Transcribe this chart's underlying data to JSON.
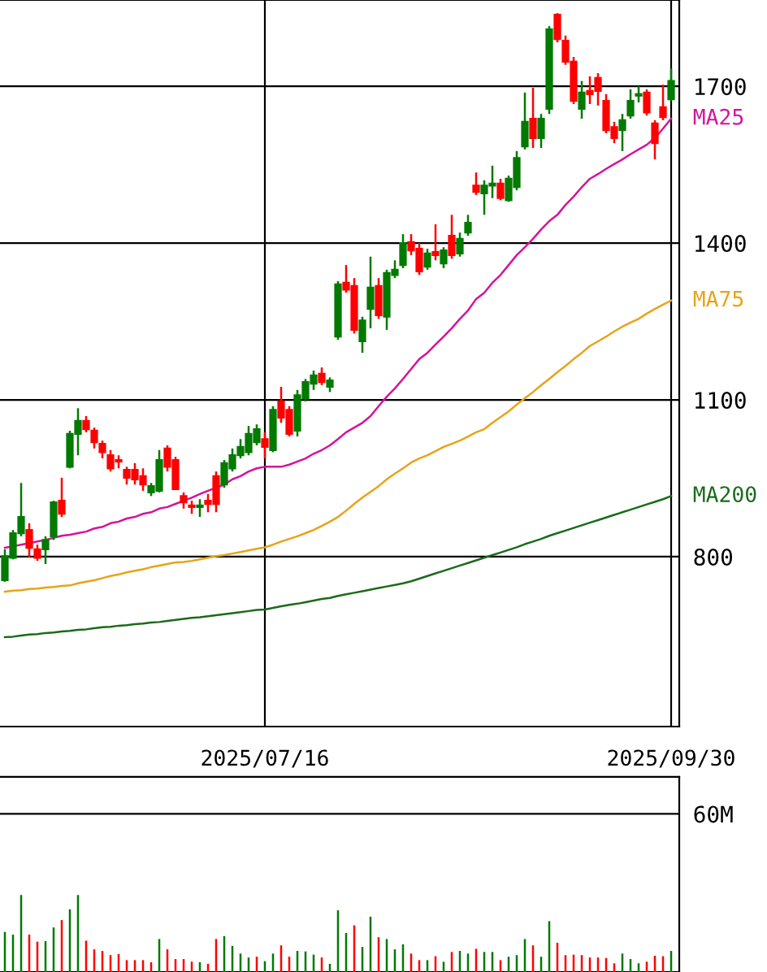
{
  "chart_data": [
    {
      "type": "candlestick",
      "grid": true,
      "ylim": [
        475,
        1865
      ],
      "yticks": [
        800,
        1100,
        1400,
        1700
      ],
      "categories": [
        null,
        null,
        null,
        null,
        null,
        null,
        null,
        null,
        null,
        null,
        null,
        null,
        null,
        null,
        null,
        null,
        null,
        null,
        null,
        null,
        null,
        null,
        null,
        null,
        null,
        null,
        null,
        null,
        null,
        null,
        null,
        null,
        "2025/07/16",
        null,
        null,
        null,
        null,
        null,
        null,
        null,
        null,
        null,
        null,
        null,
        null,
        null,
        null,
        null,
        null,
        null,
        null,
        null,
        null,
        null,
        null,
        null,
        null,
        null,
        null,
        null,
        null,
        null,
        null,
        null,
        null,
        null,
        null,
        null,
        null,
        null,
        null,
        null,
        null,
        null,
        null,
        null,
        null,
        null,
        null,
        null,
        null,
        null,
        "2025/09/30"
      ],
      "ohlc": [
        [
          755,
          814,
          752,
          801
        ],
        [
          798,
          851,
          795,
          845
        ],
        [
          845,
          941,
          839,
          876
        ],
        [
          851,
          864,
          798,
          817
        ],
        [
          814,
          823,
          792,
          798
        ],
        [
          814,
          839,
          786,
          832
        ],
        [
          839,
          907,
          832,
          904
        ],
        [
          907,
          951,
          876,
          882
        ],
        [
          972,
          1041,
          969,
          1035
        ],
        [
          1035,
          1084,
          994,
          1060
        ],
        [
          1060,
          1069,
          1038,
          1044
        ],
        [
          1041,
          1047,
          1007,
          1019
        ],
        [
          1016,
          1022,
          988,
          1000
        ],
        [
          994,
          1004,
          963,
          969
        ],
        [
          985,
          994,
          969,
          982
        ],
        [
          966,
          972,
          938,
          951
        ],
        [
          966,
          979,
          938,
          948
        ],
        [
          954,
          969,
          926,
          938
        ],
        [
          923,
          941,
          916,
          935
        ],
        [
          926,
          1004,
          923,
          985
        ],
        [
          1007,
          1013,
          963,
          972
        ],
        [
          985,
          991,
          929,
          929
        ],
        [
          916,
          923,
          892,
          904
        ],
        [
          898,
          907,
          882,
          895
        ],
        [
          895,
          910,
          876,
          898
        ],
        [
          907,
          920,
          885,
          901
        ],
        [
          954,
          963,
          885,
          901
        ],
        [
          938,
          985,
          932,
          979
        ],
        [
          969,
          1007,
          963,
          994
        ],
        [
          994,
          1025,
          988,
          1010
        ],
        [
          1000,
          1050,
          994,
          1035
        ],
        [
          1019,
          1053,
          1013,
          1044
        ],
        [
          1025,
          1038,
          988,
          1010
        ],
        [
          1004,
          1088,
          1000,
          1081
        ],
        [
          1097,
          1125,
          1056,
          1066
        ],
        [
          1081,
          1088,
          1030,
          1035
        ],
        [
          1041,
          1119,
          1030,
          1109
        ],
        [
          1103,
          1140,
          1097,
          1134
        ],
        [
          1131,
          1156,
          1119,
          1147
        ],
        [
          1150,
          1162,
          1128,
          1134
        ],
        [
          1125,
          1143,
          1115,
          1137
        ],
        [
          1221,
          1327,
          1215,
          1321
        ],
        [
          1324,
          1358,
          1305,
          1311
        ],
        [
          1318,
          1333,
          1227,
          1234
        ],
        [
          1212,
          1259,
          1190,
          1252
        ],
        [
          1274,
          1374,
          1237,
          1315
        ],
        [
          1318,
          1333,
          1255,
          1262
        ],
        [
          1259,
          1349,
          1234,
          1343
        ],
        [
          1339,
          1367,
          1333,
          1349
        ],
        [
          1358,
          1417,
          1352,
          1400
        ],
        [
          1402,
          1417,
          1377,
          1386
        ],
        [
          1389,
          1400,
          1339,
          1346
        ],
        [
          1355,
          1389,
          1349,
          1380
        ],
        [
          1383,
          1436,
          1367,
          1377
        ],
        [
          1361,
          1392,
          1352,
          1386
        ],
        [
          1414,
          1454,
          1370,
          1377
        ],
        [
          1380,
          1420,
          1374,
          1408
        ],
        [
          1420,
          1454,
          1414,
          1439
        ],
        [
          1510,
          1535,
          1492,
          1498
        ],
        [
          1495,
          1520,
          1454,
          1510
        ],
        [
          1510,
          1548,
          1486,
          1514
        ],
        [
          1514,
          1523,
          1482,
          1486
        ],
        [
          1482,
          1529,
          1479,
          1523
        ],
        [
          1507,
          1576,
          1501,
          1563
        ],
        [
          1585,
          1688,
          1579,
          1632
        ],
        [
          1638,
          1697,
          1582,
          1601
        ],
        [
          1601,
          1647,
          1582,
          1638
        ],
        [
          1657,
          1815,
          1647,
          1809
        ],
        [
          1837,
          1840,
          1784,
          1790
        ],
        [
          1787,
          1797,
          1741,
          1747
        ],
        [
          1747,
          1756,
          1666,
          1672
        ],
        [
          1657,
          1710,
          1638,
          1688
        ],
        [
          1691,
          1719,
          1666,
          1685
        ],
        [
          1716,
          1725,
          1663,
          1691
        ],
        [
          1672,
          1685,
          1610,
          1616
        ],
        [
          1622,
          1632,
          1591,
          1601
        ],
        [
          1616,
          1647,
          1576,
          1635
        ],
        [
          1644,
          1694,
          1638,
          1672
        ],
        [
          1682,
          1700,
          1669,
          1685
        ],
        [
          1688,
          1694,
          1644,
          1650
        ],
        [
          1629,
          1635,
          1560,
          1591
        ],
        [
          1660,
          1703,
          1635,
          1641
        ],
        [
          1675,
          1734,
          1672,
          1710
        ]
      ],
      "colors": [
        "#007a00",
        "#007a00",
        "#007a00",
        "#ff0000",
        "#ff0000",
        "#007a00",
        "#007a00",
        "#ff0000",
        "#007a00",
        "#007a00",
        "#ff0000",
        "#ff0000",
        "#ff0000",
        "#ff0000",
        "#ff0000",
        "#ff0000",
        "#ff0000",
        "#ff0000",
        "#007a00",
        "#007a00",
        "#ff0000",
        "#ff0000",
        "#ff0000",
        "#ff0000",
        "#007a00",
        "#ff0000",
        "#ff0000",
        "#007a00",
        "#007a00",
        "#007a00",
        "#007a00",
        "#007a00",
        "#ff0000",
        "#007a00",
        "#ff0000",
        "#ff0000",
        "#007a00",
        "#007a00",
        "#007a00",
        "#ff0000",
        "#007a00",
        "#007a00",
        "#ff0000",
        "#ff0000",
        "#007a00",
        "#007a00",
        "#ff0000",
        "#007a00",
        "#007a00",
        "#007a00",
        "#ff0000",
        "#ff0000",
        "#007a00",
        "#ff0000",
        "#007a00",
        "#ff0000",
        "#007a00",
        "#007a00",
        "#ff0000",
        "#007a00",
        "#007a00",
        "#ff0000",
        "#007a00",
        "#007a00",
        "#007a00",
        "#ff0000",
        "#007a00",
        "#007a00",
        "#ff0000",
        "#ff0000",
        "#ff0000",
        "#007a00",
        "#ff0000",
        "#ff0000",
        "#ff0000",
        "#ff0000",
        "#007a00",
        "#007a00",
        "#007a00",
        "#ff0000",
        "#ff0000",
        "#ff0000",
        "#007a00"
      ],
      "series": [
        {
          "name": "MA25",
          "type": "line",
          "color": "#d4149b",
          "values": [
            817,
            820,
            823,
            826,
            829,
            832,
            836,
            840,
            842,
            845,
            848,
            854,
            857,
            864,
            867,
            873,
            876,
            882,
            885,
            892,
            895,
            901,
            907,
            913,
            920,
            926,
            932,
            938,
            948,
            954,
            963,
            969,
            972,
            972,
            972,
            976,
            982,
            988,
            997,
            1004,
            1013,
            1025,
            1038,
            1047,
            1056,
            1069,
            1088,
            1106,
            1122,
            1140,
            1159,
            1178,
            1190,
            1206,
            1221,
            1237,
            1255,
            1271,
            1293,
            1305,
            1324,
            1339,
            1358,
            1377,
            1392,
            1408,
            1426,
            1442,
            1454,
            1473,
            1489,
            1507,
            1523,
            1532,
            1542,
            1551,
            1560,
            1570,
            1579,
            1588,
            1601,
            1619,
            1638
          ]
        },
        {
          "name": "MA75",
          "type": "line",
          "color": "#e8a317",
          "values": [
            733,
            735,
            736,
            738,
            739,
            741,
            742,
            744,
            745,
            749,
            752,
            755,
            759,
            763,
            766,
            770,
            773,
            776,
            780,
            783,
            786,
            789,
            790,
            792,
            795,
            798,
            801,
            803,
            806,
            809,
            812,
            815,
            818,
            823,
            829,
            834,
            839,
            845,
            851,
            859,
            867,
            876,
            888,
            901,
            913,
            924,
            935,
            948,
            959,
            969,
            980,
            988,
            994,
            1002,
            1010,
            1016,
            1022,
            1030,
            1038,
            1044,
            1056,
            1067,
            1078,
            1091,
            1103,
            1115,
            1128,
            1140,
            1153,
            1165,
            1178,
            1190,
            1203,
            1212,
            1221,
            1231,
            1240,
            1248,
            1255,
            1265,
            1274,
            1282,
            1290
          ]
        },
        {
          "name": "MA200",
          "type": "line",
          "color": "#1a6b1a",
          "values": [
            646,
            647,
            649,
            651,
            652,
            654,
            655,
            657,
            658,
            660,
            661,
            663,
            665,
            666,
            668,
            669,
            671,
            672,
            674,
            675,
            677,
            679,
            681,
            683,
            684,
            686,
            688,
            690,
            692,
            694,
            696,
            698,
            699,
            702,
            705,
            708,
            710,
            713,
            716,
            719,
            721,
            725,
            728,
            731,
            734,
            737,
            740,
            743,
            746,
            749,
            753,
            758,
            763,
            768,
            773,
            778,
            783,
            788,
            793,
            798,
            803,
            808,
            813,
            818,
            824,
            829,
            834,
            840,
            845,
            850,
            855,
            860,
            865,
            870,
            875,
            880,
            885,
            890,
            895,
            900,
            905,
            910,
            916
          ]
        }
      ]
    },
    {
      "type": "bar",
      "grid": "y",
      "tick_labels": "y",
      "ylim": [
        0,
        74
      ],
      "yticks": [
        {
          "value": 60,
          "label": "60M"
        }
      ],
      "categories": [
        null,
        null,
        null,
        null,
        null,
        null,
        null,
        null,
        null,
        null,
        null,
        null,
        null,
        null,
        null,
        null,
        null,
        null,
        null,
        null,
        null,
        null,
        null,
        null,
        null,
        null,
        null,
        null,
        null,
        null,
        null,
        null,
        null,
        null,
        null,
        null,
        null,
        null,
        null,
        null,
        null,
        null,
        null,
        null,
        null,
        null,
        null,
        null,
        null,
        null,
        null,
        null,
        null,
        null,
        null,
        null,
        null,
        null,
        null,
        null,
        null,
        null,
        null,
        null,
        null,
        null,
        null,
        null,
        null,
        null,
        null,
        null,
        null,
        null,
        null,
        null,
        null,
        null,
        null,
        null,
        null,
        null,
        null
      ],
      "values": [
        15.2,
        14.2,
        29.2,
        14.2,
        11.5,
        11.7,
        16.9,
        19.7,
        23.8,
        29.2,
        11.9,
        8.6,
        8.0,
        6.4,
        6.8,
        4.5,
        4.5,
        4.5,
        3.7,
        12.5,
        8.6,
        4.9,
        4.9,
        3.9,
        3.7,
        3.1,
        12.5,
        13.6,
        9.9,
        7.0,
        5.5,
        5.8,
        4.1,
        7.0,
        10.1,
        5.8,
        8.0,
        7.8,
        6.6,
        5.5,
        3.1,
        23.4,
        14.8,
        17.7,
        9.5,
        21.0,
        13.2,
        12.5,
        8.6,
        10.5,
        7.0,
        4.5,
        4.5,
        6.0,
        3.9,
        7.6,
        8.0,
        7.0,
        8.8,
        7.6,
        7.6,
        4.5,
        5.8,
        6.4,
        12.5,
        10.1,
        5.8,
        19.3,
        11.1,
        6.4,
        6.6,
        6.4,
        5.5,
        5.5,
        5.3,
        3.3,
        7.0,
        4.9,
        3.3,
        3.9,
        6.2,
        6.0,
        8.0
      ],
      "colors": [
        "#007a00",
        "#007a00",
        "#007a00",
        "#ff0000",
        "#ff0000",
        "#007a00",
        "#007a00",
        "#ff0000",
        "#007a00",
        "#007a00",
        "#ff0000",
        "#ff0000",
        "#ff0000",
        "#ff0000",
        "#ff0000",
        "#ff0000",
        "#ff0000",
        "#ff0000",
        "#ff0000",
        "#007a00",
        "#ff0000",
        "#ff0000",
        "#ff0000",
        "#ff0000",
        "#007a00",
        "#ff0000",
        "#ff0000",
        "#007a00",
        "#007a00",
        "#007a00",
        "#007a00",
        "#ff0000",
        "#007a00",
        "#007a00",
        "#ff0000",
        "#ff0000",
        "#007a00",
        "#007a00",
        "#007a00",
        "#ff0000",
        "#007a00",
        "#007a00",
        "#007a00",
        "#ff0000",
        "#007a00",
        "#007a00",
        "#ff0000",
        "#007a00",
        "#007a00",
        "#007a00",
        "#ff0000",
        "#ff0000",
        "#007a00",
        "#ff0000",
        "#007a00",
        "#ff0000",
        "#007a00",
        "#007a00",
        "#ff0000",
        "#007a00",
        "#007a00",
        "#ff0000",
        "#007a00",
        "#007a00",
        "#007a00",
        "#ff0000",
        "#007a00",
        "#007a00",
        "#ff0000",
        "#ff0000",
        "#ff0000",
        "#ff0000",
        "#ff0000",
        "#ff0000",
        "#ff0000",
        "#ff0000",
        "#007a00",
        "#007a00",
        "#007a00",
        "#ff0000",
        "#ff0000",
        "#ff0000",
        "#007a00"
      ]
    }
  ]
}
